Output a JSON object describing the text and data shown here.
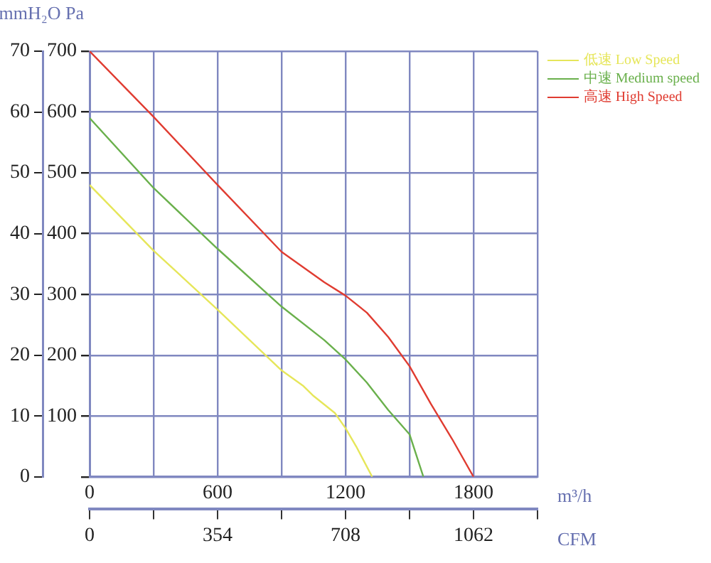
{
  "chart_data": {
    "type": "line",
    "xlabel": "m³/h",
    "ylabel": "Pa",
    "y2label": "mmH₂O",
    "x2label": "CFM",
    "xlim": [
      0,
      2100
    ],
    "xticks": [
      0,
      {
        "value": 300,
        "label": null
      },
      600,
      {
        "value": 900,
        "label": null
      },
      1200,
      {
        "value": 1500,
        "label": null
      },
      1800,
      {
        "value": 2100,
        "label": null
      }
    ],
    "x2lim": [
      0,
      1239
    ],
    "x2ticks": [
      0,
      {
        "value": 177,
        "label": null
      },
      354,
      {
        "value": 531,
        "label": null
      },
      708,
      {
        "value": 885,
        "label": null
      },
      1062,
      {
        "value": 1239,
        "label": null
      }
    ],
    "ylim": [
      0,
      700
    ],
    "yticks": [
      {
        "value": 0,
        "label": null
      },
      100,
      200,
      300,
      400,
      500,
      600,
      700
    ],
    "y2lim": [
      0,
      70
    ],
    "y2ticks": [
      0,
      10,
      20,
      30,
      40,
      50,
      60,
      70
    ],
    "grid": true,
    "legend": "top right",
    "marker": "none",
    "line_style": "solid",
    "series": [
      {
        "name": "低速 Low Speed",
        "color": "#e6e65a",
        "x": [
          0,
          300,
          600,
          900,
          1000,
          1050,
          1150,
          1200,
          1250,
          1325
        ],
        "values": [
          480,
          372,
          275,
          175,
          150,
          133,
          105,
          80,
          50,
          0
        ]
      },
      {
        "name": "中速 Medium speed",
        "color": "#6ab04c",
        "x": [
          0,
          300,
          600,
          900,
          1100,
          1200,
          1300,
          1400,
          1500,
          1565
        ],
        "values": [
          590,
          475,
          375,
          280,
          225,
          193,
          155,
          110,
          70,
          0
        ]
      },
      {
        "name": "高速 High Speed",
        "color": "#e03c31",
        "x": [
          0,
          300,
          600,
          900,
          1100,
          1200,
          1300,
          1400,
          1500,
          1600,
          1700,
          1800
        ],
        "values": [
          700,
          592,
          480,
          370,
          320,
          298,
          270,
          230,
          182,
          120,
          62,
          0
        ]
      }
    ]
  }
}
